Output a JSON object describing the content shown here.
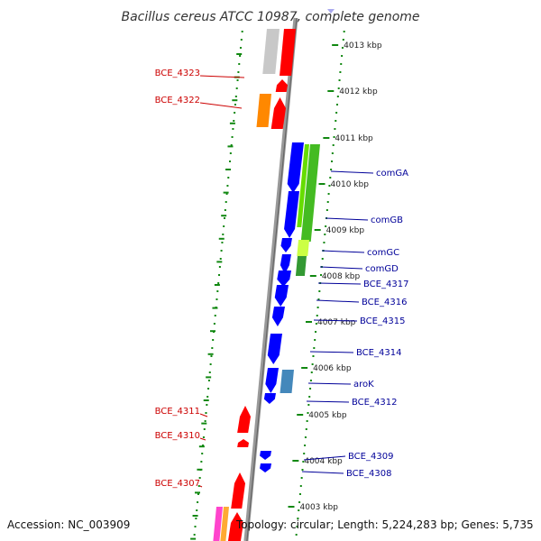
{
  "title": "Bacillus cereus ATCC 10987, complete genome",
  "accession": "Accession: NC_003909",
  "topology": "Topology: circular; Length: 5,224,283 bp; Genes: 5,735",
  "colors": {
    "forward_label": "#cc0000",
    "reverse_label": "#000099",
    "backbone": "#888888",
    "scale_dots": "#118811"
  },
  "kbp_marks": [
    "4013 kbp",
    "4012 kbp",
    "4011 kbp",
    "4010 kbp",
    "4009 kbp",
    "4008 kbp",
    "4007 kbp",
    "4006 kbp",
    "4005 kbp",
    "4004 kbp",
    "4003 kbp"
  ],
  "forward_genes": [
    "BCE_4323",
    "BCE_4322",
    "BCE_4311",
    "BCE_4310",
    "BCE_4307"
  ],
  "reverse_genes": [
    "comGA",
    "comGB",
    "comGC",
    "comGD",
    "BCE_4317",
    "BCE_4316",
    "BCE_4315",
    "BCE_4314",
    "aroK",
    "BCE_4312",
    "BCE_4309",
    "BCE_4308"
  ]
}
